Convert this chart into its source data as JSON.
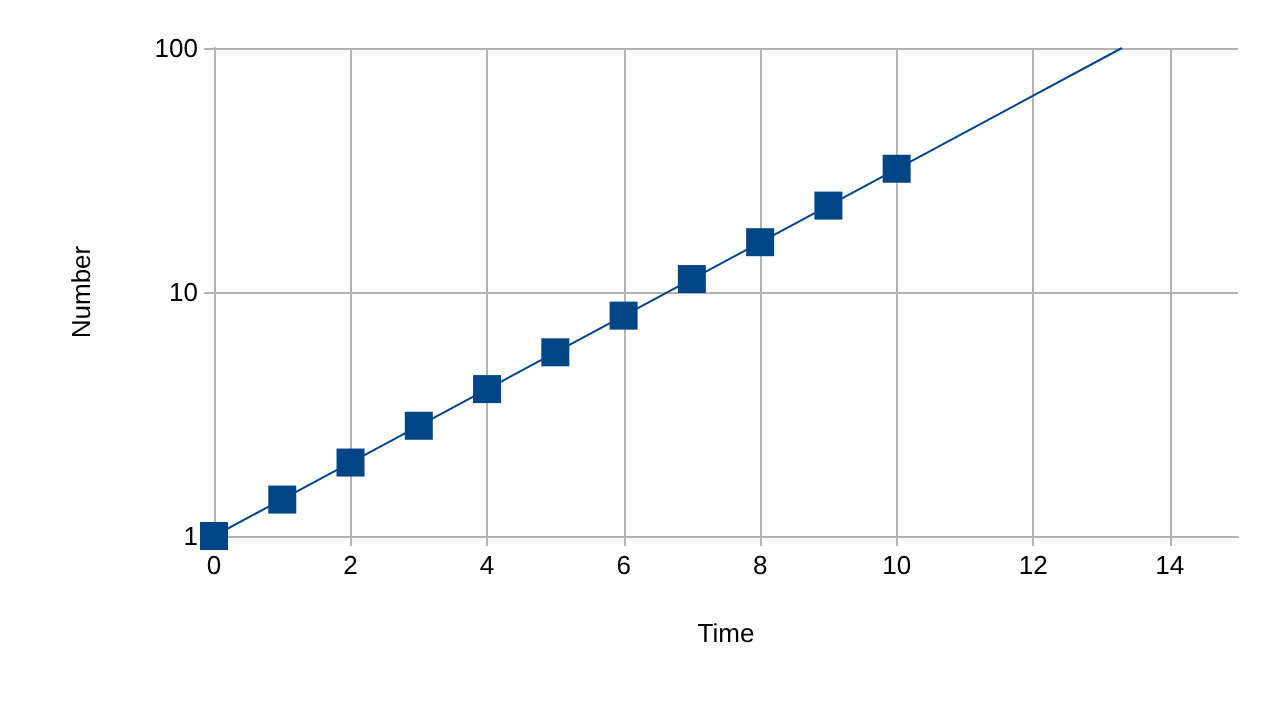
{
  "chart_data": {
    "type": "scatter",
    "xlabel": "Time",
    "ylabel": "Number",
    "log": "y",
    "grid": true,
    "xlim": [
      0,
      15
    ],
    "xticks": [
      0,
      2,
      4,
      6,
      8,
      10,
      12,
      14
    ],
    "ylim": [
      1,
      100
    ],
    "yticks": [
      1,
      10,
      100
    ],
    "series": [
      {
        "marker": "square",
        "color": "#004586",
        "x": [
          0,
          1,
          2,
          3,
          4,
          5,
          6,
          7,
          8,
          9,
          10
        ],
        "values": [
          1,
          1.41,
          2,
          2.83,
          4,
          5.66,
          8,
          11.3,
          16,
          22.6,
          32
        ]
      },
      {
        "type": "line",
        "marker": "none",
        "line_style": "solid",
        "color": "#004586",
        "x": [
          0,
          13.3
        ],
        "values": [
          1,
          100
        ]
      }
    ]
  }
}
